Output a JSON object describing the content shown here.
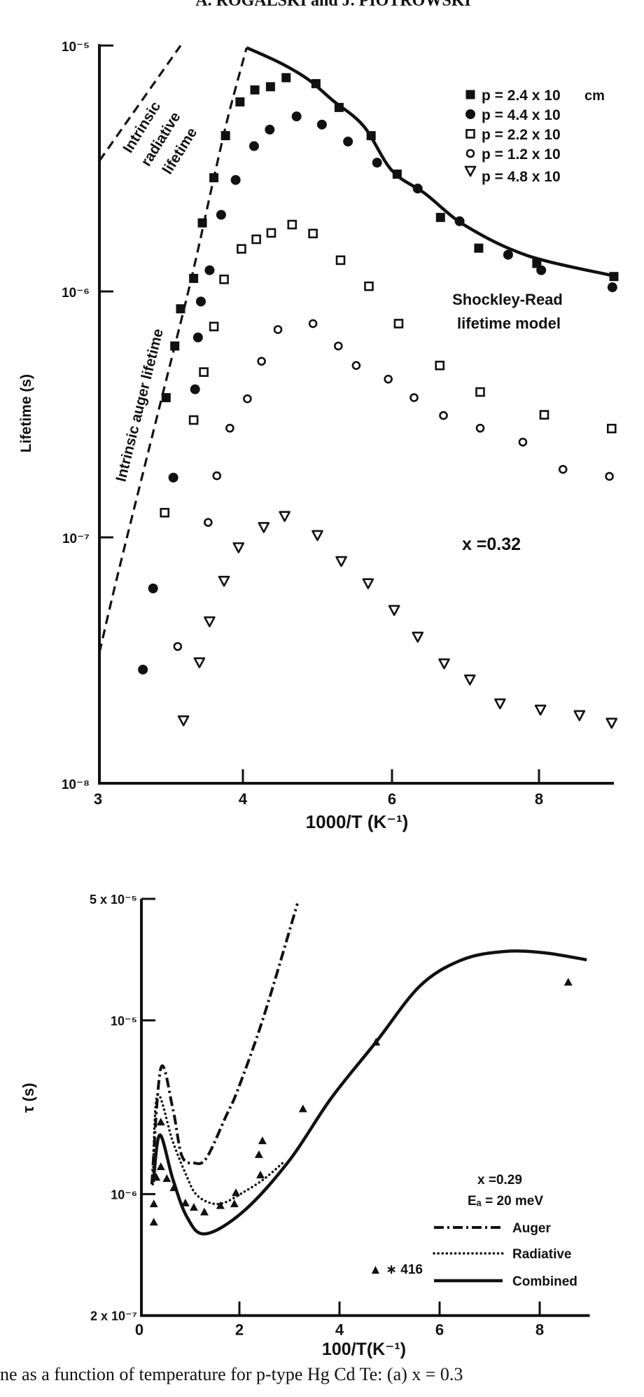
{
  "page": {
    "running_header": "A. ROGALSKI and J. PIOTROWSKI",
    "caption": "ne as a function of temperature for p-type Hg     Cd Te: (a) x = 0.3"
  },
  "colors": {
    "ink": "#111111",
    "paper": "#ffffff"
  },
  "chart_data": [
    {
      "type": "scatter",
      "panel": "top",
      "xlabel": "1000/T (K⁻¹)",
      "ylabel": "Lifetime (s)",
      "x_ticks": [
        {
          "value": 3,
          "label": "3"
        },
        {
          "value": 4,
          "label": "4"
        },
        {
          "value": 6,
          "label": "6"
        },
        {
          "value": 8,
          "label": "8"
        }
      ],
      "y_ticks": [
        {
          "value": 1e-05,
          "label": "10⁻⁵"
        },
        {
          "value": 1e-06,
          "label": "10⁻⁶"
        },
        {
          "value": 1e-07,
          "label": "10⁻⁷"
        },
        {
          "value": 1e-08,
          "label": "10⁻⁸"
        }
      ],
      "xlim": [
        3,
        9
      ],
      "ylim": [
        1e-08,
        1e-05
      ],
      "yscale": "log",
      "grid": false,
      "legend_position": "top-right",
      "legend_unit": "cm",
      "annotations": {
        "composition": "x =0.32",
        "radiative_line": [
          "Intrinsic",
          "radiative",
          "lifetime"
        ],
        "auger_line": "Intrinsic auger lifetime",
        "model_line": [
          "Shockley-Read",
          "lifetime model"
        ]
      },
      "series": [
        {
          "name": "p = 2.4 x 10",
          "marker": "filled-square",
          "x": [
            3.47,
            3.53,
            3.57,
            3.66,
            3.72,
            3.8,
            3.88,
            3.98,
            4.16,
            4.37,
            4.58,
            4.98,
            5.29,
            5.72,
            6.07,
            6.66,
            7.18,
            7.97,
            9.0
          ],
          "y": [
            3.7e-07,
            6e-07,
            8.5e-07,
            1.13e-06,
            1.9e-06,
            2.9e-06,
            4.3e-06,
            5.9e-06,
            6.6e-06,
            6.8e-06,
            7.4e-06,
            7e-06,
            5.6e-06,
            4.3e-06,
            3e-06,
            2e-06,
            1.5e-06,
            1.3e-06,
            1.15e-06
          ]
        },
        {
          "name": "p = 4.4 x 10",
          "marker": "filled-circle",
          "x": [
            3.31,
            3.38,
            3.52,
            3.67,
            3.69,
            3.71,
            3.77,
            3.85,
            3.95,
            4.15,
            4.36,
            4.72,
            5.06,
            5.41,
            5.8,
            6.35,
            6.92,
            7.58,
            8.03,
            8.98
          ],
          "y": [
            2.9e-08,
            6.2e-08,
            1.75e-07,
            4e-07,
            6.5e-07,
            9.1e-07,
            1.22e-06,
            2.05e-06,
            2.84e-06,
            3.9e-06,
            4.55e-06,
            5.15e-06,
            4.77e-06,
            4.07e-06,
            3.34e-06,
            2.62e-06,
            1.93e-06,
            1.41e-06,
            1.22e-06,
            1.04e-06
          ]
        },
        {
          "name": "p = 2.2 x 10",
          "marker": "open-square",
          "x": [
            3.46,
            3.66,
            3.73,
            3.8,
            3.87,
            3.99,
            4.18,
            4.38,
            4.66,
            4.94,
            5.31,
            5.69,
            6.09,
            6.65,
            7.2,
            8.07,
            8.97
          ],
          "y": [
            1.26e-07,
            3e-07,
            4.7e-07,
            7.2e-07,
            1.12e-06,
            1.49e-06,
            1.63e-06,
            1.73e-06,
            1.87e-06,
            1.72e-06,
            1.34e-06,
            1.05e-06,
            7.4e-07,
            5e-07,
            3.9e-07,
            3.15e-07,
            2.77e-07
          ]
        },
        {
          "name": "p = 1.2 x 10",
          "marker": "open-circle",
          "x": [
            3.55,
            3.76,
            3.82,
            3.91,
            4.06,
            4.25,
            4.47,
            4.94,
            5.28,
            5.52,
            5.95,
            6.3,
            6.7,
            7.2,
            7.78,
            8.32,
            8.94
          ],
          "y": [
            3.6e-08,
            1.15e-07,
            1.78e-07,
            2.78e-07,
            3.66e-07,
            5.2e-07,
            7e-07,
            7.4e-07,
            6e-07,
            5e-07,
            4.4e-07,
            3.7e-07,
            3.13e-07,
            2.78e-07,
            2.44e-07,
            1.89e-07,
            1.77e-07
          ]
        },
        {
          "name": "p = 4.8 x 10",
          "marker": "open-triangle-down",
          "x": [
            3.59,
            3.7,
            3.77,
            3.87,
            3.97,
            4.28,
            4.56,
            5.0,
            5.32,
            5.68,
            6.03,
            6.35,
            6.71,
            7.06,
            7.47,
            8.02,
            8.54,
            8.97
          ],
          "y": [
            1.8e-08,
            3.1e-08,
            4.55e-08,
            6.65e-08,
            9.1e-08,
            1.1e-07,
            1.22e-07,
            1.02e-07,
            8e-08,
            6.5e-08,
            5.06e-08,
            3.94e-08,
            3.07e-08,
            2.64e-08,
            2.11e-08,
            1.99e-08,
            1.89e-08,
            1.76e-08
          ]
        }
      ],
      "curves": [
        {
          "id": "shockley-read",
          "style": "solid",
          "x": [
            4.05,
            4.5,
            4.87,
            5.2,
            5.62,
            6.0,
            6.45,
            7.0,
            7.84,
            8.98
          ],
          "y": [
            9.8e-06,
            8.5e-06,
            7.3e-06,
            6e-06,
            4.7e-06,
            3.1e-06,
            2.5e-06,
            1.85e-06,
            1.4e-06,
            1.16e-06
          ]
        },
        {
          "id": "intrinsic-auger",
          "style": "dashed",
          "x": [
            3.01,
            3.14,
            3.43,
            3.64,
            3.8,
            3.9,
            4.05
          ],
          "y": [
            3.4e-08,
            7.2e-08,
            3.5e-07,
            1.1e-06,
            2.9e-06,
            5.2e-06,
            9.8e-06
          ]
        },
        {
          "id": "intrinsic-radiative",
          "style": "dashed",
          "x": [
            3.01,
            3.57
          ],
          "y": [
            3.4e-06,
            1e-05
          ]
        }
      ]
    },
    {
      "type": "line",
      "panel": "bottom",
      "xlabel": "100/T(K⁻¹)",
      "ylabel": "τ (s)",
      "x_ticks": [
        {
          "value": 0,
          "label": "0"
        },
        {
          "value": 2,
          "label": "2"
        },
        {
          "value": 4,
          "label": "4"
        },
        {
          "value": 6,
          "label": "6"
        },
        {
          "value": 8,
          "label": "8"
        }
      ],
      "y_ticks": [
        {
          "value": 5e-05,
          "label": "5 x 10⁻⁵"
        },
        {
          "value": 1e-05,
          "label": "10⁻⁵"
        },
        {
          "value": 1e-06,
          "label": "10⁻⁶"
        },
        {
          "value": 2e-07,
          "label": "2 x 10⁻⁷"
        }
      ],
      "xlim": [
        0,
        9
      ],
      "ylim": [
        2e-07,
        5e-05
      ],
      "yscale": "log",
      "grid": false,
      "legend_position": "bottom-right",
      "annotations": {
        "composition": "x =0.29",
        "activation_energy": "Eₐ = 20 meV",
        "sample_label": "▲ ∗ 416"
      },
      "series": [
        {
          "name": "Auger",
          "style": "dash-dot",
          "x": [
            0.25,
            0.43,
            0.67,
            0.85,
            1.09,
            1.34,
            1.73,
            1.97,
            2.49,
            3.16
          ],
          "y": [
            1.14e-06,
            5.3e-06,
            3.1e-06,
            1.66e-06,
            1.51e-06,
            1.61e-06,
            2.8e-06,
            4e-06,
            1.06e-05,
            4.7e-05
          ]
        },
        {
          "name": "Radiative",
          "style": "dotted",
          "x": [
            0.27,
            0.36,
            0.67,
            0.95,
            1.13,
            1.41,
            1.69,
            2.07,
            2.49,
            2.91
          ],
          "y": [
            1.14e-06,
            3.7e-06,
            2e-06,
            1.26e-06,
            1e-06,
            8.9e-07,
            8.9e-07,
            1.02e-06,
            1.22e-06,
            1.55e-06
          ]
        },
        {
          "name": "Combined",
          "style": "solid",
          "x": [
            0.28,
            0.41,
            0.67,
            0.95,
            1.31,
            2.07,
            2.99,
            3.83,
            4.73,
            5.61,
            6.45,
            7.29,
            8.08,
            8.94
          ],
          "y": [
            1.17e-06,
            2.19e-06,
            1.22e-06,
            7.4e-07,
            5.9e-07,
            7.9e-07,
            1.55e-06,
            3.55e-06,
            7.5e-06,
            1.58e-05,
            2.23e-05,
            2.49e-05,
            2.45e-05,
            2.23e-05
          ]
        }
      ],
      "points": {
        "name": "416",
        "marker": "filled-triangle",
        "x": [
          0.29,
          0.29,
          0.34,
          0.43,
          0.43,
          0.55,
          0.69,
          0.92,
          1.09,
          1.3,
          1.62,
          1.9,
          1.93,
          2.39,
          2.42,
          2.46,
          3.27,
          4.73,
          8.57
        ],
        "y": [
          6.9e-07,
          8.8e-07,
          1.25e-06,
          1.44e-06,
          2.6e-06,
          1.23e-06,
          1.09e-06,
          8.9e-07,
          8.4e-07,
          7.9e-07,
          8.6e-07,
          8.8e-07,
          1.02e-06,
          1.69e-06,
          1.29e-06,
          2.03e-06,
          3.1e-06,
          7.5e-06,
          1.66e-05
        ]
      }
    }
  ]
}
